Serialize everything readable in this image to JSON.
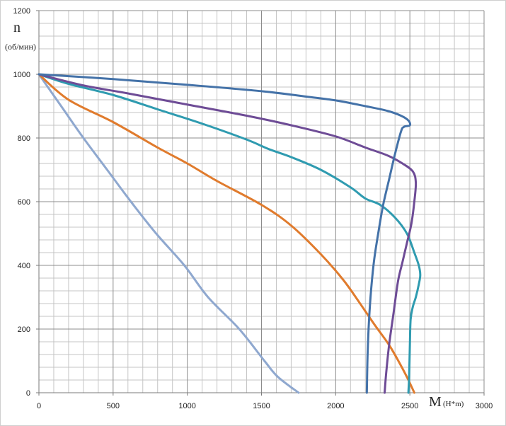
{
  "chart_data": {
    "type": "line",
    "title": "",
    "ylabel": "n",
    "ylabel_unit": "(об/мин)",
    "xlabel": "M",
    "xlabel_unit": "(H*m)",
    "xlim": [
      0,
      3000
    ],
    "ylim": [
      0,
      1200
    ],
    "x_major_ticks": [
      0,
      500,
      1000,
      1500,
      2000,
      2500,
      3000
    ],
    "y_major_ticks": [
      0,
      200,
      400,
      600,
      800,
      1000,
      1200
    ],
    "x_tick_labels": [
      "0",
      "500",
      "1000",
      "1500",
      "2000",
      "2500",
      "3000"
    ],
    "y_tick_labels": [
      "0",
      "200",
      "400",
      "600",
      "800",
      "1000",
      "1200"
    ],
    "grid": true,
    "minor_grid": true,
    "legend": "none",
    "series": [
      {
        "color": "#8fa8cf",
        "points": [
          [
            0,
            1000
          ],
          [
            150,
            900
          ],
          [
            300,
            800
          ],
          [
            460,
            700
          ],
          [
            620,
            600
          ],
          [
            790,
            500
          ],
          [
            980,
            400
          ],
          [
            1140,
            300
          ],
          [
            1350,
            200
          ],
          [
            1520,
            100
          ],
          [
            1610,
            50
          ],
          [
            1750,
            0
          ]
        ]
      },
      {
        "color": "#e07b2d",
        "points": [
          [
            0,
            1000
          ],
          [
            200,
            920
          ],
          [
            500,
            850
          ],
          [
            800,
            770
          ],
          [
            1000,
            720
          ],
          [
            1200,
            665
          ],
          [
            1500,
            590
          ],
          [
            1700,
            525
          ],
          [
            1900,
            435
          ],
          [
            2050,
            355
          ],
          [
            2150,
            290
          ],
          [
            2260,
            215
          ],
          [
            2360,
            150
          ],
          [
            2440,
            85
          ],
          [
            2490,
            40
          ],
          [
            2530,
            0
          ]
        ]
      },
      {
        "color": "#2f9bb0",
        "points": [
          [
            0,
            1000
          ],
          [
            200,
            970
          ],
          [
            500,
            935
          ],
          [
            800,
            890
          ],
          [
            1100,
            845
          ],
          [
            1400,
            795
          ],
          [
            1550,
            765
          ],
          [
            1700,
            740
          ],
          [
            1900,
            700
          ],
          [
            2100,
            645
          ],
          [
            2200,
            610
          ],
          [
            2300,
            590
          ],
          [
            2400,
            550
          ],
          [
            2480,
            500
          ],
          [
            2530,
            440
          ],
          [
            2560,
            400
          ],
          [
            2570,
            370
          ],
          [
            2560,
            340
          ],
          [
            2540,
            300
          ],
          [
            2520,
            270
          ],
          [
            2505,
            230
          ],
          [
            2500,
            150
          ],
          [
            2495,
            50
          ],
          [
            2490,
            0
          ]
        ]
      },
      {
        "color": "#6e4c96",
        "points": [
          [
            0,
            1000
          ],
          [
            300,
            965
          ],
          [
            600,
            940
          ],
          [
            1000,
            905
          ],
          [
            1400,
            870
          ],
          [
            1700,
            840
          ],
          [
            2000,
            805
          ],
          [
            2200,
            770
          ],
          [
            2350,
            745
          ],
          [
            2450,
            720
          ],
          [
            2520,
            695
          ],
          [
            2540,
            660
          ],
          [
            2530,
            600
          ],
          [
            2510,
            530
          ],
          [
            2480,
            470
          ],
          [
            2450,
            410
          ],
          [
            2420,
            350
          ],
          [
            2390,
            250
          ],
          [
            2360,
            150
          ],
          [
            2340,
            60
          ],
          [
            2330,
            0
          ]
        ]
      },
      {
        "color": "#4472a8",
        "points": [
          [
            0,
            1000
          ],
          [
            500,
            985
          ],
          [
            1000,
            967
          ],
          [
            1500,
            947
          ],
          [
            1800,
            930
          ],
          [
            2000,
            918
          ],
          [
            2200,
            900
          ],
          [
            2350,
            885
          ],
          [
            2440,
            870
          ],
          [
            2490,
            855
          ],
          [
            2500,
            840
          ],
          [
            2460,
            835
          ],
          [
            2440,
            820
          ],
          [
            2400,
            750
          ],
          [
            2360,
            670
          ],
          [
            2320,
            590
          ],
          [
            2290,
            510
          ],
          [
            2260,
            420
          ],
          [
            2240,
            330
          ],
          [
            2225,
            230
          ],
          [
            2215,
            120
          ],
          [
            2210,
            0
          ]
        ]
      }
    ]
  }
}
